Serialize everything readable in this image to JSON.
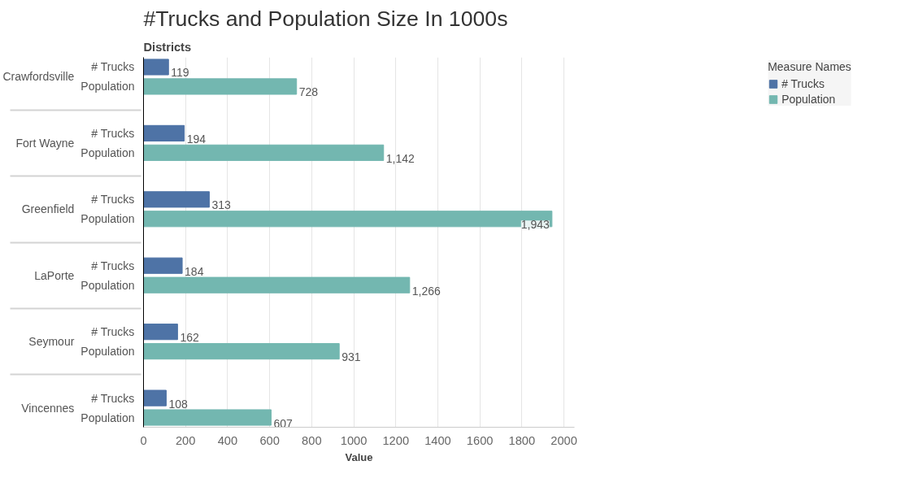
{
  "chart_data": {
    "type": "bar",
    "orientation": "horizontal",
    "title": "#Trucks and Population Size In 1000s",
    "ylabel": "Districts",
    "xlabel": "Value",
    "legend_title": "Measure Names",
    "categories": [
      "Crawfordsville",
      "Fort Wayne",
      "Greenfield",
      "LaPorte",
      "Seymour",
      "Vincennes"
    ],
    "series": [
      {
        "name": "# Trucks",
        "color": "#4e73a6",
        "values": [
          119,
          194,
          313,
          184,
          162,
          108
        ]
      },
      {
        "name": "Population",
        "color": "#73b7b0",
        "values": [
          728,
          1142,
          1943,
          1266,
          931,
          607
        ],
        "value_labels": [
          "728",
          "1,142",
          "1,943",
          "1,266",
          "931",
          "607"
        ]
      }
    ],
    "xlim": [
      0,
      2050
    ],
    "xticks": [
      0,
      200,
      400,
      600,
      800,
      1000,
      1200,
      1400,
      1600,
      1800,
      2000
    ],
    "grid": "x",
    "legend": "top right",
    "data_labels": true
  }
}
